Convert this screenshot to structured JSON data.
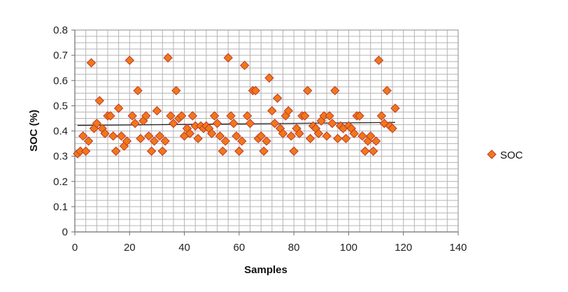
{
  "chart_data": {
    "type": "scatter",
    "xlabel": "Samples",
    "ylabel": "SOC (%)",
    "xlim": [
      0,
      140
    ],
    "ylim": [
      0,
      0.8
    ],
    "x_ticks": [
      0,
      20,
      40,
      60,
      80,
      100,
      120,
      140
    ],
    "y_ticks": [
      0,
      0.1,
      0.2,
      0.3,
      0.4,
      0.5,
      0.6,
      0.7,
      0.8
    ],
    "y_tick_labels": [
      "0",
      "0.1",
      "0.2",
      "0.3",
      "0.4",
      "0.5",
      "0.6",
      "0.7",
      "0.8"
    ],
    "x_tick_labels": [
      "0",
      "20",
      "40",
      "60",
      "80",
      "100",
      "120",
      "140"
    ],
    "grid": "major and minor",
    "legend_position": "right",
    "series": [
      {
        "name": "SOC",
        "marker": "diamond",
        "fill_color": "#f07818",
        "edge_color": "#c0392b",
        "x": [
          1,
          2,
          3,
          4,
          5,
          6,
          7,
          8,
          9,
          10,
          11,
          12,
          13,
          14,
          15,
          16,
          17,
          18,
          19,
          20,
          21,
          22,
          23,
          24,
          25,
          26,
          27,
          28,
          29,
          30,
          31,
          32,
          33,
          34,
          35,
          36,
          37,
          38,
          39,
          40,
          41,
          42,
          43,
          44,
          45,
          46,
          47,
          48,
          49,
          50,
          51,
          52,
          53,
          54,
          55,
          56,
          57,
          58,
          59,
          60,
          61,
          62,
          63,
          64,
          65,
          66,
          67,
          68,
          69,
          70,
          71,
          72,
          73,
          74,
          75,
          76,
          77,
          78,
          79,
          80,
          81,
          82,
          83,
          84,
          85,
          86,
          87,
          88,
          89,
          90,
          91,
          92,
          93,
          94,
          95,
          96,
          97,
          98,
          99,
          100,
          101,
          102,
          103,
          104,
          105,
          106,
          107,
          108,
          109,
          110,
          111,
          112,
          113,
          114,
          115,
          116,
          117
        ],
        "y": [
          0.31,
          0.32,
          0.38,
          0.32,
          0.36,
          0.67,
          0.41,
          0.43,
          0.52,
          0.41,
          0.39,
          0.46,
          0.46,
          0.38,
          0.32,
          0.49,
          0.38,
          0.34,
          0.36,
          0.68,
          0.46,
          0.43,
          0.56,
          0.37,
          0.44,
          0.46,
          0.38,
          0.32,
          0.36,
          0.48,
          0.38,
          0.32,
          0.36,
          0.69,
          0.46,
          0.43,
          0.56,
          0.45,
          0.46,
          0.38,
          0.41,
          0.39,
          0.46,
          0.42,
          0.37,
          0.42,
          0.41,
          0.42,
          0.41,
          0.39,
          0.46,
          0.43,
          0.38,
          0.32,
          0.36,
          0.69,
          0.46,
          0.43,
          0.38,
          0.32,
          0.36,
          0.66,
          0.46,
          0.43,
          0.56,
          0.56,
          0.37,
          0.38,
          0.32,
          0.36,
          0.61,
          0.48,
          0.43,
          0.53,
          0.41,
          0.39,
          0.46,
          0.48,
          0.38,
          0.32,
          0.41,
          0.39,
          0.46,
          0.46,
          0.56,
          0.37,
          0.42,
          0.41,
          0.39,
          0.44,
          0.46,
          0.38,
          0.46,
          0.43,
          0.56,
          0.37,
          0.42,
          0.41,
          0.37,
          0.42,
          0.41,
          0.39,
          0.46,
          0.46,
          0.38,
          0.32,
          0.36,
          0.38,
          0.32,
          0.36,
          0.68,
          0.46,
          0.43,
          0.56,
          0.42,
          0.41,
          0.49
        ]
      }
    ],
    "trendline": {
      "type": "linear",
      "color": "#222222",
      "x_range": [
        1,
        117
      ],
      "y_start": 0.422,
      "y_end": 0.434
    }
  }
}
